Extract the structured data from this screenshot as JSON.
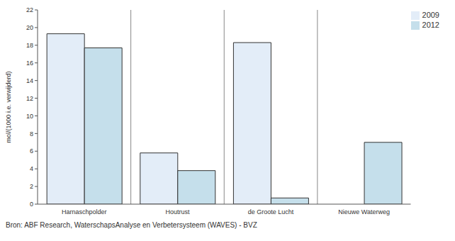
{
  "chart_data": {
    "type": "bar",
    "y_label": "mol/(1000 i.e. verwijderd)",
    "source": "Bron: ABF Research, WaterschapsAnalyse en Verbetersysteem (WAVES) - BVZ",
    "categories": [
      "Harnaschpolder",
      "Houtrust",
      "de Groote Lucht",
      "Nieuwe Waterweg"
    ],
    "series": [
      {
        "name": "2009",
        "color": "#e3edf8",
        "values": [
          19.3,
          5.8,
          18.3,
          null
        ]
      },
      {
        "name": "2012",
        "color": "#c5dfeb",
        "values": [
          17.7,
          3.8,
          0.7,
          7.0
        ]
      }
    ],
    "ylim": [
      0,
      22
    ],
    "yticks": [
      0,
      2,
      4,
      6,
      8,
      10,
      12,
      14,
      16,
      18,
      20,
      22
    ],
    "grid": true,
    "legend": "top-right"
  }
}
